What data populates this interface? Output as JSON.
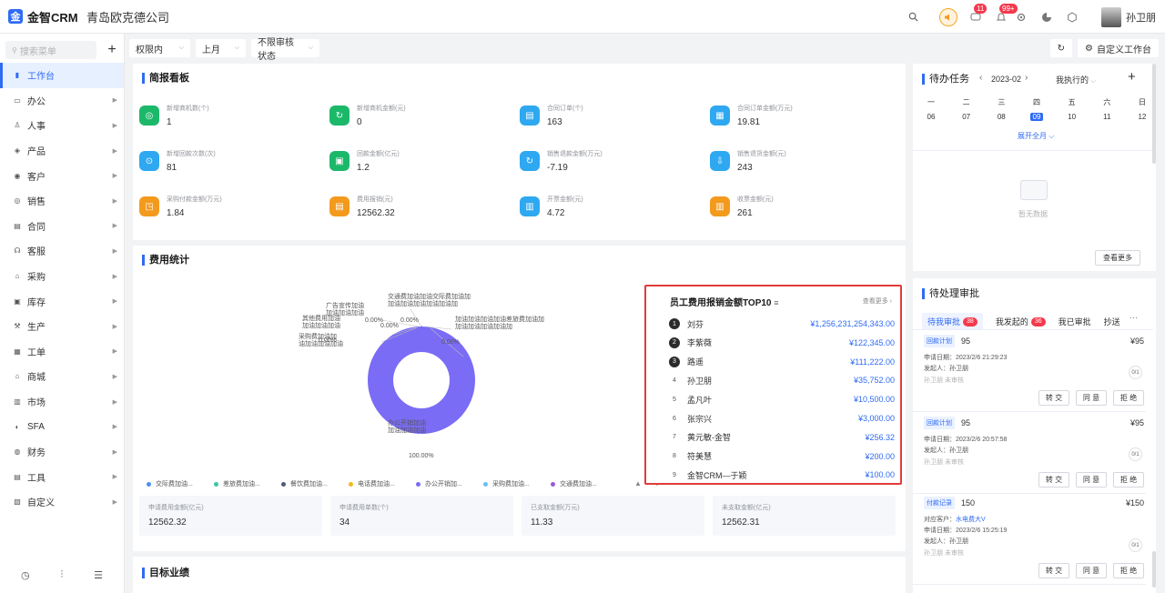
{
  "header": {
    "logo_letter": "金",
    "app_name": "金智CRM",
    "company": "青岛欧克德公司",
    "badge_messages": "11",
    "badge_notifications": "99+",
    "user_name": "孙卫朋"
  },
  "sidebar": {
    "search_placeholder": "搜索菜单",
    "items": [
      {
        "label": "工作台",
        "icon": "dashboard-icon",
        "active": true
      },
      {
        "label": "办公",
        "icon": "office-icon"
      },
      {
        "label": "人事",
        "icon": "hr-icon"
      },
      {
        "label": "产品",
        "icon": "product-icon"
      },
      {
        "label": "客户",
        "icon": "customer-icon"
      },
      {
        "label": "销售",
        "icon": "sales-icon"
      },
      {
        "label": "合同",
        "icon": "contract-icon"
      },
      {
        "label": "客服",
        "icon": "service-icon"
      },
      {
        "label": "采购",
        "icon": "purchase-icon"
      },
      {
        "label": "库存",
        "icon": "inventory-icon"
      },
      {
        "label": "生产",
        "icon": "production-icon"
      },
      {
        "label": "工单",
        "icon": "workorder-icon"
      },
      {
        "label": "商城",
        "icon": "mall-icon"
      },
      {
        "label": "市场",
        "icon": "market-icon"
      },
      {
        "label": "SFA",
        "icon": "sfa-icon"
      },
      {
        "label": "财务",
        "icon": "finance-icon"
      },
      {
        "label": "工具",
        "icon": "tools-icon"
      },
      {
        "label": "自定义",
        "icon": "custom-icon"
      }
    ]
  },
  "filters": {
    "scope": "权限内",
    "period": "上月",
    "audit": "不限审核状态",
    "custom_label": "自定义工作台"
  },
  "briefing": {
    "title": "简报看板",
    "stats": [
      {
        "label": "新增商机数(个)",
        "value": "1",
        "color": "#1cb86a"
      },
      {
        "label": "新增商机金额(元)",
        "value": "0",
        "color": "#1cb86a"
      },
      {
        "label": "合同订单(个)",
        "value": "163",
        "color": "#2ea8f0"
      },
      {
        "label": "合同订单金额(万元)",
        "value": "19.81",
        "color": "#2ea8f0"
      },
      {
        "label": "新增回款次数(次)",
        "value": "81",
        "color": "#2ea8f0"
      },
      {
        "label": "回款金额(亿元)",
        "value": "1.2",
        "color": "#1cb86a"
      },
      {
        "label": "销售退款金额(万元)",
        "value": "-7.19",
        "color": "#2ea8f0"
      },
      {
        "label": "销售退货金额(元)",
        "value": "243",
        "color": "#2ea8f0"
      },
      {
        "label": "采购付款金额(万元)",
        "value": "1.84",
        "color": "#f39a1d"
      },
      {
        "label": "费用报销(元)",
        "value": "12562.32",
        "color": "#f39a1d"
      },
      {
        "label": "开票金额(元)",
        "value": "4.72",
        "color": "#2ea8f0"
      },
      {
        "label": "收票金额(元)",
        "value": "261",
        "color": "#f39a1d"
      }
    ]
  },
  "expense": {
    "title": "费用统计",
    "pie_labels": [
      {
        "line1": "交通费加油加油交际费加油加",
        "line2": "加油加油加油加油加油加"
      },
      {
        "line1": "广告宣传加油",
        "line2": "加油加油加油"
      },
      {
        "line1": "加油加油加油加油差旅费加油加",
        "line2": "加油加油加油加油加"
      },
      {
        "line1": "其他费用加油",
        "line2": "加油加油加油"
      },
      {
        "line1": "采购费加油加",
        "line2": "油加油加油加油"
      },
      {
        "line1": "办公开销加油",
        "line2": "加油加油加油"
      }
    ],
    "pct_zero": "0.00%",
    "pct_full": "100.00%",
    "legend": [
      {
        "label": "交际费加油...",
        "color": "#4f8ff7"
      },
      {
        "label": "差旅费加油...",
        "color": "#36c9a7"
      },
      {
        "label": "餐饮费加油...",
        "color": "#4d5a7d"
      },
      {
        "label": "电话费加油...",
        "color": "#f5b71c"
      },
      {
        "label": "办公开销加...",
        "color": "#7a6cf5"
      },
      {
        "label": "采购费加油...",
        "color": "#69c0f0"
      },
      {
        "label": "交通费加油...",
        "color": "#9b59d6"
      }
    ],
    "summary": [
      {
        "label": "申请费用金额(亿元)",
        "value": "12562.32"
      },
      {
        "label": "申请费用单数(个)",
        "value": "34"
      },
      {
        "label": "已支取金额(万元)",
        "value": "11.33"
      },
      {
        "label": "未支取金额(亿元)",
        "value": "12562.31"
      }
    ]
  },
  "chart_data": {
    "type": "pie",
    "title": "",
    "series": [
      {
        "name": "交际费加油",
        "value": 0,
        "pct": "0.00%"
      },
      {
        "name": "差旅费加油",
        "value": 0,
        "pct": "0.00%"
      },
      {
        "name": "餐饮费加油",
        "value": 0,
        "pct": "0.00%"
      },
      {
        "name": "电话费加油",
        "value": 0,
        "pct": "0.00%"
      },
      {
        "name": "办公开销加油",
        "value": 100,
        "pct": "100.00%"
      },
      {
        "name": "采购费加油",
        "value": 0,
        "pct": "0.00%"
      },
      {
        "name": "交通费加油",
        "value": 0,
        "pct": "0.00%"
      }
    ]
  },
  "top10": {
    "title": "员工费用报销金额TOP10",
    "more": "查看更多",
    "rows": [
      {
        "rank": "1",
        "name": "刘芬",
        "amount": "¥1,256,231,254,343.00"
      },
      {
        "rank": "2",
        "name": "李紫薇",
        "amount": "¥122,345.00"
      },
      {
        "rank": "3",
        "name": "路遥",
        "amount": "¥111,222.00"
      },
      {
        "rank": "4",
        "name": "孙卫朋",
        "amount": "¥35,752.00"
      },
      {
        "rank": "5",
        "name": "孟凡叶",
        "amount": "¥10,500.00"
      },
      {
        "rank": "6",
        "name": "张宗兴",
        "amount": "¥3,000.00"
      },
      {
        "rank": "7",
        "name": "黄元敏-金智",
        "amount": "¥256.32"
      },
      {
        "rank": "8",
        "name": "符美慧",
        "amount": "¥200.00"
      },
      {
        "rank": "9",
        "name": "金智CRM—于颖",
        "amount": "¥100.00"
      }
    ]
  },
  "goals": {
    "title": "目标业绩"
  },
  "todo": {
    "title": "待办任务",
    "month": "2023-02",
    "scope": "我执行的",
    "weekdays": [
      "一",
      "二",
      "三",
      "四",
      "五",
      "六",
      "日"
    ],
    "dates": [
      "06",
      "07",
      "08",
      "09",
      "10",
      "11",
      "12"
    ],
    "selected_date": "09",
    "expand": "展开全月",
    "empty": "暂无数据",
    "view_more": "查看更多"
  },
  "approval": {
    "title": "待处理审批",
    "tabs": [
      {
        "label": "待我审批",
        "badge": "38"
      },
      {
        "label": "我发起的",
        "badge": "36"
      },
      {
        "label": "我已审批",
        "badge": ""
      },
      {
        "label": "抄送",
        "badge": ""
      }
    ],
    "more": "···",
    "buttons": {
      "transfer": "转 交",
      "approve": "同 意",
      "reject": "拒 绝"
    },
    "cards": [
      {
        "tag": "回款计划",
        "num": "95",
        "amount": "¥95",
        "line1": "申请日期：2023/2/6 21:29:23",
        "line2": "发起人：孙卫朋",
        "line3": "孙卫朋 未审核",
        "count": "0/1"
      },
      {
        "tag": "回款计划",
        "num": "95",
        "amount": "¥95",
        "line1": "申请日期：2023/2/6 20:57:58",
        "line2": "发起人：孙卫朋",
        "line3": "孙卫朋 未审核",
        "count": "0/1"
      },
      {
        "tag": "付款记录",
        "num": "150",
        "amount": "¥150",
        "line0_label": "对应客户：",
        "line0_value": "水电费大V",
        "line1": "申请日期：2023/2/6 15:25:19",
        "line2": "发起人：孙卫朋",
        "line3": "孙卫朋 未审核",
        "count": "0/1"
      }
    ]
  }
}
